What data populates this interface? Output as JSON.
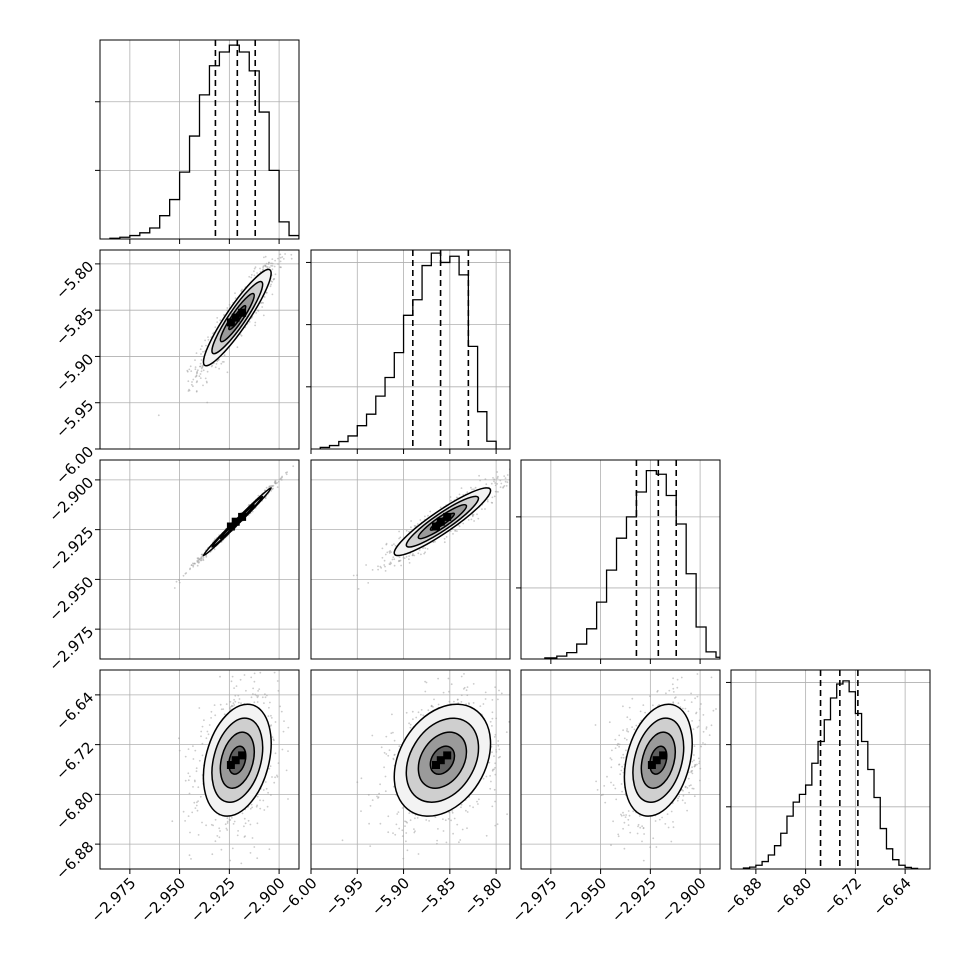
{
  "chart_data": {
    "type": "corner",
    "grid": true,
    "quantile_line_style": "dashed",
    "parameters": [
      {
        "range": [
          -2.99,
          -2.89
        ],
        "ticks": [
          -2.975,
          -2.95,
          -2.925,
          -2.9
        ],
        "tick_labels": [
          "−2.975",
          "−2.950",
          "−2.925",
          "−2.900"
        ],
        "quantiles": [
          -2.932,
          -2.921,
          -2.912
        ],
        "histogram": {
          "bin_edges": [
            -2.985,
            -2.98,
            -2.975,
            -2.97,
            -2.965,
            -2.96,
            -2.955,
            -2.95,
            -2.945,
            -2.94,
            -2.935,
            -2.93,
            -2.925,
            -2.92,
            -2.915,
            -2.91,
            -2.905,
            -2.9,
            -2.895,
            -2.89
          ],
          "counts": [
            0.2,
            0.5,
            1,
            1.8,
            3.2,
            6.8,
            11.5,
            19.5,
            30,
            42,
            50.5,
            54.5,
            56.5,
            54.5,
            49,
            37,
            20,
            5,
            1
          ],
          "ymax": 58
        }
      },
      {
        "range": [
          -6.0,
          -5.785
        ],
        "ticks": [
          -6.0,
          -5.95,
          -5.9,
          -5.85,
          -5.8
        ],
        "tick_labels": [
          "−6.00",
          "−5.95",
          "−5.90",
          "−5.85",
          "−5.80"
        ],
        "quantiles": [
          -5.89,
          -5.86,
          -5.83
        ],
        "histogram": {
          "bin_edges": [
            -5.99,
            -5.98,
            -5.97,
            -5.96,
            -5.95,
            -5.94,
            -5.93,
            -5.92,
            -5.91,
            -5.9,
            -5.89,
            -5.88,
            -5.87,
            -5.86,
            -5.85,
            -5.84,
            -5.83,
            -5.82,
            -5.81,
            -5.8
          ],
          "counts": [
            0.5,
            1.1,
            2.4,
            4.2,
            7.5,
            11.2,
            17,
            23,
            31,
            43,
            48,
            59,
            63,
            60,
            62,
            56,
            33,
            12,
            2.5
          ],
          "ymax": 64
        }
      },
      {
        "range": [
          -2.99,
          -2.89
        ],
        "ticks": [
          -2.975,
          -2.95,
          -2.925,
          -2.9
        ],
        "tick_labels": [
          "−2.975",
          "−2.950",
          "−2.925",
          "−2.900"
        ],
        "quantiles": [
          -2.932,
          -2.921,
          -2.912
        ],
        "histogram": {
          "bin_edges": [
            -2.978,
            -2.972,
            -2.967,
            -2.962,
            -2.957,
            -2.952,
            -2.947,
            -2.942,
            -2.937,
            -2.932,
            -2.927,
            -2.922,
            -2.917,
            -2.912,
            -2.907,
            -2.902,
            -2.897,
            -2.892,
            -2.887
          ],
          "counts": [
            0.3,
            0.8,
            1.8,
            4.2,
            8.5,
            16,
            25,
            34,
            40,
            47,
            53,
            52,
            46,
            38,
            24,
            9,
            2,
            0.5
          ],
          "ymax": 56
        }
      },
      {
        "range": [
          -6.92,
          -6.6
        ],
        "ticks": [
          -6.88,
          -6.8,
          -6.72,
          -6.64
        ],
        "tick_labels": [
          "−6.88",
          "−6.80",
          "−6.72",
          "−6.64"
        ],
        "quantiles": [
          -6.776,
          -6.745,
          -6.716
        ],
        "histogram": {
          "bin_edges": [
            -6.9,
            -6.89,
            -6.88,
            -6.87,
            -6.86,
            -6.85,
            -6.84,
            -6.83,
            -6.82,
            -6.81,
            -6.8,
            -6.79,
            -6.78,
            -6.77,
            -6.76,
            -6.75,
            -6.74,
            -6.73,
            -6.72,
            -6.71,
            -6.7,
            -6.69,
            -6.68,
            -6.67,
            -6.66,
            -6.65,
            -6.64,
            -6.63,
            -6.62
          ],
          "counts": [
            0.3,
            0.6,
            1.2,
            2.4,
            4.5,
            7.5,
            11.5,
            17,
            21.5,
            24,
            27,
            34,
            41,
            48,
            55,
            59.5,
            60.5,
            57,
            50,
            41,
            32,
            23,
            13,
            6.5,
            3,
            1.2,
            0.5,
            0.2
          ],
          "ymax": 64
        }
      }
    ],
    "pairs": [
      {
        "row": 1,
        "col": 0,
        "center": [
          -2.921,
          -5.858
        ],
        "sigma": [
          0.0085,
          0.026
        ],
        "rho": 0.92
      },
      {
        "row": 2,
        "col": 0,
        "center": [
          -2.921,
          -2.921
        ],
        "sigma": [
          0.0085,
          0.0085
        ],
        "rho": 0.995
      },
      {
        "row": 2,
        "col": 1,
        "center": [
          -5.858,
          -2.921
        ],
        "sigma": [
          0.026,
          0.0085
        ],
        "rho": 0.92
      },
      {
        "row": 3,
        "col": 0,
        "center": [
          -2.921,
          -6.745
        ],
        "sigma": [
          0.0085,
          0.045
        ],
        "rho": 0.3
      },
      {
        "row": 3,
        "col": 1,
        "center": [
          -5.858,
          -6.745
        ],
        "sigma": [
          0.026,
          0.045
        ],
        "rho": 0.3
      },
      {
        "row": 3,
        "col": 2,
        "center": [
          -2.921,
          -6.745
        ],
        "sigma": [
          0.0085,
          0.045
        ],
        "rho": 0.3
      }
    ],
    "contour_levels_sigma": [
      0.5,
      1.0,
      1.5,
      2.0
    ]
  }
}
